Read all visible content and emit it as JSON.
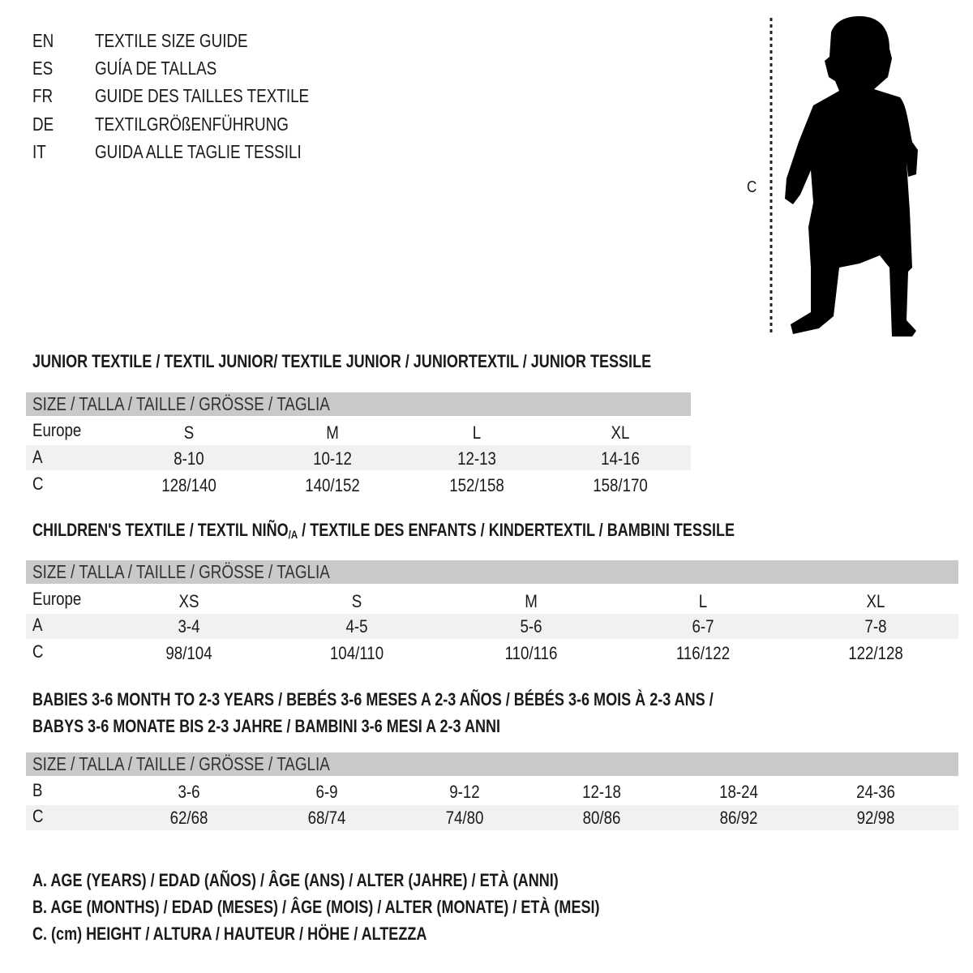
{
  "languages": [
    {
      "code": "EN",
      "text": "TEXTILE SIZE GUIDE"
    },
    {
      "code": "ES",
      "text": "GUÍA DE TALLAS"
    },
    {
      "code": "FR",
      "text": "GUIDE DES TAILLES TEXTILE"
    },
    {
      "code": "DE",
      "text": "TEXTILGRÖßENFÜHRUNG"
    },
    {
      "code": "IT",
      "text": "GUIDA ALLE TAGLIE TESSILI"
    }
  ],
  "figure": {
    "label": "C",
    "icon": "child-silhouette"
  },
  "size_header": "SIZE / TALLA / TAILLE / GRÖSSE / TAGLIA",
  "junior": {
    "title": "JUNIOR TEXTILE / TEXTIL JUNIOR/ TEXTILE JUNIOR / JUNIORTEXTIL / JUNIOR TESSILE",
    "rows": [
      {
        "label": "Europe",
        "values": [
          "S",
          "M",
          "L",
          "XL"
        ]
      },
      {
        "label": "A",
        "values": [
          "8-10",
          "10-12",
          "12-13",
          "14-16"
        ]
      },
      {
        "label": "C",
        "values": [
          "128/140",
          "140/152",
          "152/158",
          "158/170"
        ]
      }
    ]
  },
  "children": {
    "title_a": "CHILDREN'S TEXTILE / TEXTIL NIÑO",
    "title_sub": "/A",
    "title_b": " / TEXTILE DES ENFANTS / KINDERTEXTIL / BAMBINI TESSILE",
    "rows": [
      {
        "label": "Europe",
        "values": [
          "XS",
          "S",
          "M",
          "L",
          "XL"
        ]
      },
      {
        "label": "A",
        "values": [
          "3-4",
          "4-5",
          "5-6",
          "6-7",
          "7-8"
        ]
      },
      {
        "label": "C",
        "values": [
          "98/104",
          "104/110",
          "110/116",
          "116/122",
          "122/128"
        ]
      }
    ]
  },
  "babies": {
    "title_line1": "BABIES 3-6 MONTH TO 2-3 YEARS / BEBÉS 3-6 MESES A 2-3 AÑOS / BÉBÉS 3-6 MOIS À 2-3 ANS /",
    "title_line2": "BABYS 3-6 MONATE BIS 2-3 JAHRE / BAMBINI 3-6 MESI A 2-3 ANNI",
    "rows": [
      {
        "label": "B",
        "values": [
          "3-6",
          "6-9",
          "9-12",
          "12-18",
          "18-24",
          "24-36"
        ]
      },
      {
        "label": "C",
        "values": [
          "62/68",
          "68/74",
          "74/80",
          "80/86",
          "86/92",
          "92/98"
        ]
      }
    ]
  },
  "legend": [
    "A. AGE (YEARS) / EDAD (AÑOS) / ÂGE (ANS) / ALTER (JAHRE) / ETÀ (ANNI)",
    "B. AGE (MONTHS) / EDAD (MESES) / ÂGE (MOIS) / ALTER (MONATE) / ETÀ (MESI)",
    "C. (cm) HEIGHT / ALTURA / HAUTEUR / HÖHE / ALTEZZA"
  ]
}
